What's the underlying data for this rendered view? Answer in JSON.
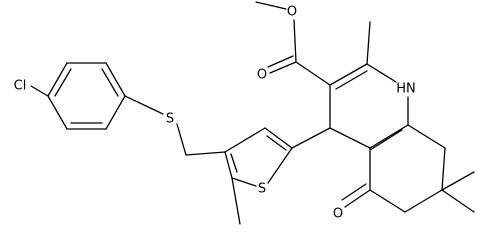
{
  "atoms": {
    "chlorine": "Cl",
    "thioether_sulfur": "S",
    "thiophene_sulfur": "S",
    "methoxy_oxygen": "O",
    "carbonyl_oxygen": "O",
    "ketone_oxygen": "O",
    "amine": "HN"
  }
}
